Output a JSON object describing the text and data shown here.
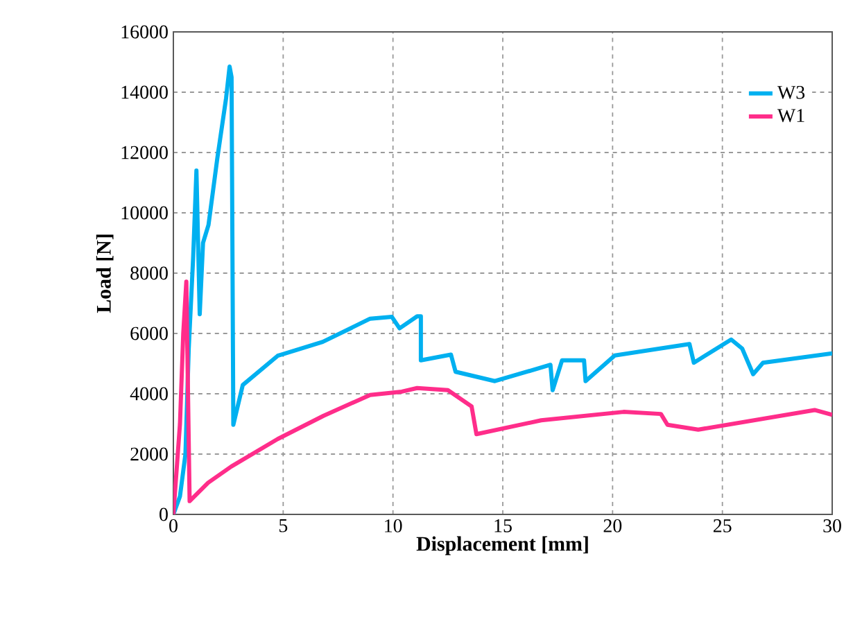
{
  "chart_data": {
    "type": "line",
    "xlabel": "Displacement [mm]",
    "ylabel": "Load [N]",
    "xlim": [
      0,
      30
    ],
    "ylim": [
      0,
      16000
    ],
    "xticks": [
      0,
      5,
      10,
      15,
      20,
      25,
      30
    ],
    "yticks": [
      0,
      2000,
      4000,
      6000,
      8000,
      10000,
      12000,
      14000,
      16000
    ],
    "grid": true,
    "legend": "top right",
    "line_style": "solid",
    "marker": "none",
    "series": [
      {
        "name": "W3",
        "color": "#00b0f0",
        "x": [
          0,
          0.3,
          0.55,
          0.7,
          0.9,
          1.05,
          1.2,
          1.35,
          1.6,
          2.0,
          2.4,
          2.56,
          2.65,
          2.73,
          3.16,
          4.75,
          6.8,
          8.96,
          9.95,
          10.3,
          11.1,
          11.27,
          11.27,
          12.64,
          12.85,
          14.64,
          17.17,
          17.27,
          17.7,
          18.7,
          18.77,
          20.1,
          23.5,
          23.7,
          25.4,
          25.9,
          26.4,
          26.85,
          30
        ],
        "values": [
          0,
          600,
          2000,
          5500,
          8500,
          11400,
          6640,
          9000,
          9600,
          11800,
          13800,
          14850,
          14500,
          2970,
          4290,
          5260,
          5720,
          6490,
          6550,
          6170,
          6570,
          6570,
          5110,
          5300,
          4730,
          4420,
          4960,
          4120,
          5110,
          5110,
          4420,
          5270,
          5650,
          5030,
          5800,
          5500,
          4650,
          5030,
          5340
        ]
      },
      {
        "name": "W1",
        "color": "#ff2d8a",
        "x": [
          0,
          0.15,
          0.3,
          0.45,
          0.59,
          0.74,
          1.58,
          2.64,
          4.75,
          6.84,
          8.96,
          10.4,
          11.1,
          12.5,
          13.58,
          13.8,
          16.75,
          20.5,
          22.2,
          22.5,
          23.9,
          29.2,
          30
        ],
        "values": [
          0,
          1500,
          3000,
          6000,
          7720,
          440,
          1050,
          1590,
          2500,
          3270,
          3960,
          4070,
          4190,
          4120,
          3580,
          2660,
          3120,
          3400,
          3330,
          2970,
          2810,
          3460,
          3300
        ]
      }
    ]
  }
}
